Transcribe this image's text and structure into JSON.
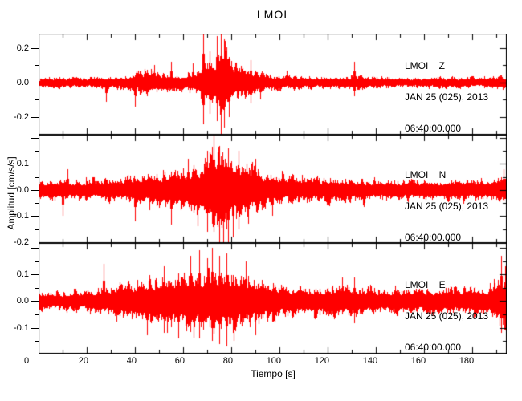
{
  "title": "LMOI",
  "xlabel": "Tiempo [s]",
  "ylabel": "Amplitud [cm/s/s]",
  "colors": {
    "trace": "#ff0000",
    "axis": "#000000",
    "background": "#ffffff"
  },
  "x_axis": {
    "min": 0,
    "max": 194.3,
    "tick_step_major": 20,
    "tick_step_minor": 10,
    "tick_labels": [
      "0",
      "20",
      "40",
      "60",
      "80",
      "100",
      "120",
      "140",
      "160",
      "180"
    ]
  },
  "chart_data": [
    {
      "type": "line",
      "station": "LMOI",
      "channel": "Z",
      "info_lines": [
        "LMOI    Z",
        "JAN 25 (025), 2013",
        "06:40:00.000"
      ],
      "ylim": [
        -0.302,
        0.283
      ],
      "yticks_labeled": [
        {
          "v": 0.2,
          "label": "0.2"
        },
        {
          "v": 0.0,
          "label": "0.0"
        },
        {
          "v": -0.2,
          "label": "-0.2"
        }
      ],
      "ytick_minor_step": 0.1,
      "ytick_major_multiple": 0.2,
      "seed": 7,
      "envelope_t": [
        0,
        8,
        15,
        22,
        28,
        34,
        38,
        42,
        46,
        50,
        54,
        58,
        62,
        65,
        67,
        69,
        71,
        73,
        75,
        77,
        79,
        82,
        85,
        88,
        92,
        96,
        100,
        106,
        112,
        120,
        126,
        130,
        134,
        140,
        148,
        156,
        166,
        176,
        186,
        191,
        194
      ],
      "envelope_a": [
        0.03,
        0.034,
        0.03,
        0.031,
        0.033,
        0.038,
        0.05,
        0.068,
        0.072,
        0.062,
        0.058,
        0.052,
        0.058,
        0.07,
        0.11,
        0.15,
        0.12,
        0.16,
        0.23,
        0.25,
        0.15,
        0.11,
        0.09,
        0.075,
        0.058,
        0.048,
        0.044,
        0.04,
        0.037,
        0.035,
        0.038,
        0.046,
        0.04,
        0.034,
        0.031,
        0.03,
        0.032,
        0.033,
        0.035,
        0.042,
        0.048
      ],
      "spikes": [
        {
          "t": 28,
          "d": 0.11
        },
        {
          "t": 40,
          "d": 0.14
        },
        {
          "t": 48,
          "u": 0.1
        },
        {
          "t": 55,
          "u": 0.12
        },
        {
          "t": 64,
          "u": 0.11
        },
        {
          "t": 68.3,
          "u": 0.3,
          "d": 0.24
        },
        {
          "t": 71,
          "u": 0.18,
          "d": 0.18
        },
        {
          "t": 74,
          "u": 0.27,
          "d": 0.22
        },
        {
          "t": 75.5,
          "u": 0.28,
          "d": 0.31
        },
        {
          "t": 77,
          "u": 0.25,
          "d": 0.26
        },
        {
          "t": 79,
          "d": 0.2
        },
        {
          "t": 88,
          "u": 0.13,
          "d": 0.12
        },
        {
          "t": 92,
          "d": 0.1
        },
        {
          "t": 103,
          "u": 0.07
        },
        {
          "t": 131,
          "u": 0.12,
          "d": 0.08
        }
      ]
    },
    {
      "type": "line",
      "station": "LMOI",
      "channel": "N",
      "info_lines": [
        "LMOI    N",
        "JAN 25 (025), 2013",
        "06:40:00.000"
      ],
      "ylim": [
        -0.203,
        0.212
      ],
      "yticks_labeled": [
        {
          "v": 0.1,
          "label": "0.1"
        },
        {
          "v": 0.0,
          "label": "0.0"
        },
        {
          "v": -0.1,
          "label": "-0.1"
        },
        {
          "v": -0.2,
          "label": "-0.2"
        }
      ],
      "ytick_minor_step": 0.05,
      "ytick_major_multiple": 0.1,
      "seed": 13,
      "envelope_t": [
        0,
        6,
        12,
        20,
        28,
        34,
        40,
        46,
        52,
        57,
        62,
        66,
        69,
        72,
        75,
        78,
        81,
        84,
        88,
        92,
        96,
        102,
        110,
        118,
        126,
        134,
        142,
        152,
        162,
        172,
        182,
        189,
        194
      ],
      "envelope_a": [
        0.034,
        0.04,
        0.042,
        0.038,
        0.042,
        0.048,
        0.058,
        0.065,
        0.07,
        0.078,
        0.085,
        0.1,
        0.115,
        0.15,
        0.16,
        0.155,
        0.13,
        0.11,
        0.09,
        0.075,
        0.065,
        0.056,
        0.05,
        0.046,
        0.044,
        0.042,
        0.04,
        0.038,
        0.039,
        0.04,
        0.042,
        0.046,
        0.056
      ],
      "spikes": [
        {
          "t": 10,
          "d": 0.1
        },
        {
          "t": 12,
          "u": 0.08
        },
        {
          "t": 40,
          "d": 0.12
        },
        {
          "t": 55,
          "d": 0.13
        },
        {
          "t": 62,
          "u": 0.12
        },
        {
          "t": 66,
          "d": 0.14
        },
        {
          "t": 70,
          "u": 0.15,
          "d": 0.16
        },
        {
          "t": 72.7,
          "u": 0.21,
          "d": 0.15
        },
        {
          "t": 75,
          "u": 0.17,
          "d": 0.2
        },
        {
          "t": 76.5,
          "d": 0.22
        },
        {
          "t": 78.5,
          "u": 0.16,
          "d": 0.21
        },
        {
          "t": 80.5,
          "d": 0.18
        },
        {
          "t": 83,
          "u": 0.15,
          "d": 0.15
        },
        {
          "t": 87,
          "d": 0.13
        },
        {
          "t": 90,
          "u": 0.12
        },
        {
          "t": 97,
          "d": 0.1
        },
        {
          "t": 193,
          "u": 0.08
        }
      ]
    },
    {
      "type": "line",
      "station": "LMOI",
      "channel": "E",
      "info_lines": [
        "LMOI    E",
        "JAN 25 (025), 2013",
        "06:40:00.000"
      ],
      "ylim": [
        -0.197,
        0.218
      ],
      "yticks_labeled": [
        {
          "v": 0.1,
          "label": "0.1"
        },
        {
          "v": 0.0,
          "label": "0.0"
        },
        {
          "v": -0.1,
          "label": "-0.1"
        }
      ],
      "ytick_minor_step": 0.05,
      "ytick_major_multiple": 0.1,
      "seed": 29,
      "envelope_t": [
        0,
        7,
        14,
        20,
        26,
        32,
        38,
        44,
        50,
        56,
        61,
        65,
        69,
        73,
        77,
        81,
        85,
        90,
        95,
        100,
        106,
        112,
        118,
        124,
        129,
        134,
        140,
        148,
        156,
        164,
        172,
        180,
        186,
        190,
        192,
        194
      ],
      "envelope_a": [
        0.034,
        0.038,
        0.04,
        0.044,
        0.052,
        0.06,
        0.072,
        0.08,
        0.088,
        0.096,
        0.104,
        0.11,
        0.115,
        0.112,
        0.11,
        0.104,
        0.096,
        0.085,
        0.074,
        0.063,
        0.057,
        0.053,
        0.056,
        0.062,
        0.057,
        0.052,
        0.049,
        0.047,
        0.048,
        0.05,
        0.051,
        0.053,
        0.056,
        0.068,
        0.095,
        0.12
      ],
      "spikes": [
        {
          "t": 27,
          "u": 0.14
        },
        {
          "t": 45,
          "d": 0.13
        },
        {
          "t": 52,
          "u": 0.13,
          "d": 0.12
        },
        {
          "t": 58,
          "d": 0.14
        },
        {
          "t": 63,
          "u": 0.17
        },
        {
          "t": 66.5,
          "u": 0.19,
          "d": 0.14
        },
        {
          "t": 70,
          "u": 0.16
        },
        {
          "t": 72,
          "u": 0.2,
          "d": 0.15
        },
        {
          "t": 75,
          "u": 0.17,
          "d": 0.16
        },
        {
          "t": 78,
          "u": 0.18,
          "d": 0.17
        },
        {
          "t": 81,
          "d": 0.15
        },
        {
          "t": 86,
          "u": 0.15
        },
        {
          "t": 90,
          "d": 0.13
        },
        {
          "t": 126,
          "u": 0.09
        },
        {
          "t": 131,
          "u": 0.09,
          "d": 0.08
        },
        {
          "t": 192,
          "u": 0.17,
          "d": 0.12
        },
        {
          "t": 193.5,
          "u": 0.13,
          "d": 0.11
        }
      ]
    }
  ]
}
